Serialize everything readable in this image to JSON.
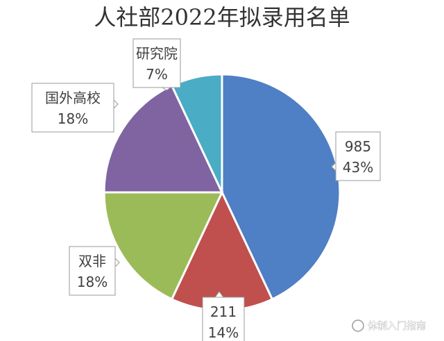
{
  "chart_data": {
    "type": "pie",
    "title": "人社部2022年拟录用名单",
    "slices": [
      {
        "label": "985",
        "percent": 43,
        "percent_label": "43%",
        "color": "#4f7fc4"
      },
      {
        "label": "211",
        "percent": 14,
        "percent_label": "14%",
        "color": "#c0504d"
      },
      {
        "label": "双非",
        "percent": 18,
        "percent_label": "18%",
        "color": "#9bbb59"
      },
      {
        "label": "国外高校",
        "percent": 18,
        "percent_label": "18%",
        "color": "#8064a2"
      },
      {
        "label": "研究院",
        "percent": 7,
        "percent_label": "7%",
        "color": "#4bacc6"
      }
    ],
    "start_angle": "12 o'clock",
    "direction": "clockwise",
    "legend": "none",
    "labels": "callouts"
  },
  "watermark": "体制入门指南"
}
